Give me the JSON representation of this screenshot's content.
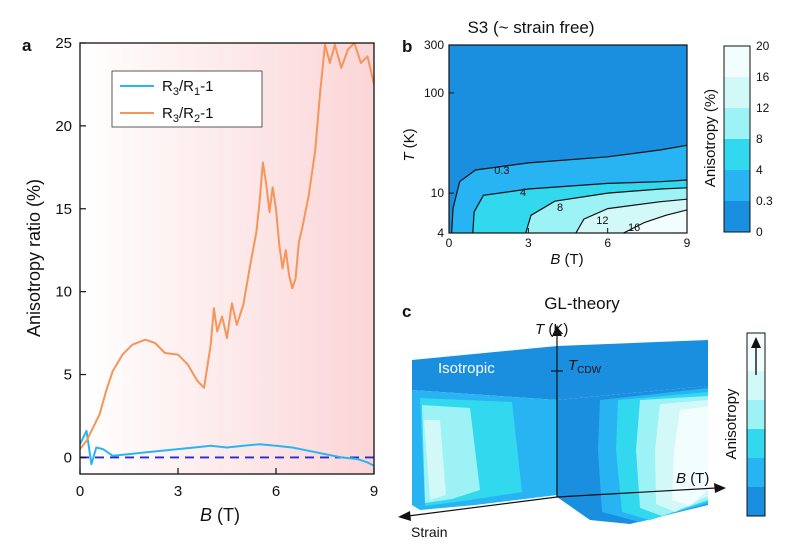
{
  "panel_a": {
    "letter": "a",
    "chart_data": {
      "type": "line",
      "xlabel_var": "B",
      "xlabel_unit": "(T)",
      "ylabel": "Anisotropy ratio (%)",
      "xlim": [
        0,
        9
      ],
      "ylim": [
        -1,
        25
      ],
      "xticks": [
        0,
        3,
        6,
        9
      ],
      "yticks": [
        0,
        5,
        10,
        15,
        20,
        25
      ],
      "legend_position": "top-left",
      "reference_line": {
        "y": 0,
        "style": "dashed",
        "color": "#2b2bd0"
      },
      "background_gradient": {
        "from": "#ffffff",
        "to": "#fbd5d7"
      },
      "series": [
        {
          "name": "R3/R1-1",
          "legend": {
            "a": "R",
            "a_sub": "3",
            "b": "/R",
            "b_sub": "1",
            "c": "-1"
          },
          "color": "#29b6f0",
          "x": [
            0,
            0.2,
            0.35,
            0.5,
            0.7,
            1,
            1.5,
            2,
            2.5,
            3,
            3.5,
            4,
            4.5,
            5,
            5.5,
            6,
            6.5,
            7,
            7.5,
            8,
            8.5,
            8.8,
            9
          ],
          "y": [
            0.8,
            1.6,
            -0.4,
            0.6,
            0.5,
            0.1,
            0.2,
            0.3,
            0.4,
            0.5,
            0.6,
            0.7,
            0.6,
            0.7,
            0.8,
            0.7,
            0.6,
            0.4,
            0.2,
            0,
            -0.1,
            -0.3,
            -0.5
          ]
        },
        {
          "name": "R3/R2-1",
          "legend": {
            "a": "R",
            "a_sub": "3",
            "b": "/R",
            "b_sub": "2",
            "c": "-1"
          },
          "color": "#f5955a",
          "x": [
            0,
            0.2,
            0.4,
            0.6,
            0.8,
            1,
            1.3,
            1.6,
            2,
            2.3,
            2.6,
            3,
            3.3,
            3.6,
            3.8,
            4,
            4.1,
            4.2,
            4.35,
            4.5,
            4.65,
            4.8,
            5,
            5.2,
            5.4,
            5.5,
            5.6,
            5.7,
            5.8,
            5.9,
            6,
            6.1,
            6.2,
            6.3,
            6.4,
            6.5,
            6.6,
            6.7,
            6.8,
            7,
            7.2,
            7.35,
            7.5,
            7.65,
            7.8,
            8,
            8.2,
            8.4,
            8.6,
            8.8,
            9
          ],
          "y": [
            0.5,
            1,
            1.8,
            2.6,
            4,
            5.2,
            6.2,
            6.8,
            7.1,
            6.9,
            6.3,
            6.2,
            5.6,
            4.6,
            4.2,
            6.8,
            9,
            7.6,
            8.5,
            7.2,
            9.3,
            8,
            9.2,
            11.5,
            13.6,
            15.5,
            17.8,
            16.5,
            14.8,
            16.3,
            15,
            12.8,
            11.4,
            12.5,
            11,
            10.2,
            10.8,
            13,
            13.8,
            15.8,
            18.5,
            22,
            24.9,
            23.8,
            24.9,
            23.5,
            24.6,
            25,
            23.8,
            24.2,
            22.5
          ]
        }
      ]
    }
  },
  "panel_b": {
    "letter": "b",
    "title": "S3 (~ strain free)",
    "chart_data": {
      "type": "heatmap",
      "xlabel_var": "B",
      "xlabel_unit": "(T)",
      "ylabel_var": "T",
      "ylabel_unit": "(K)",
      "xlim": [
        0,
        9
      ],
      "ylim": [
        4,
        300
      ],
      "yscale": "log",
      "xticks": [
        0,
        3,
        6,
        9
      ],
      "yticks": [
        4,
        10,
        100,
        300
      ],
      "contour_levels": [
        "0.3",
        "4",
        "8",
        "12",
        "16"
      ],
      "level_colors": [
        "#1a8fe0",
        "#28b4f2",
        "#31d8ee",
        "#9cf2f4",
        "#d2f8f8",
        "#f2fdfd"
      ],
      "contours": [
        {
          "label": "0.3",
          "label_at": [
            2.0,
            17
          ],
          "points": [
            [
              0.1,
              4
            ],
            [
              0.15,
              7
            ],
            [
              0.4,
              13
            ],
            [
              1,
              17
            ],
            [
              3,
              20
            ],
            [
              6,
              23
            ],
            [
              8,
              27
            ],
            [
              9,
              30
            ]
          ]
        },
        {
          "label": "4",
          "label_at": [
            2.8,
            10.2
          ],
          "points": [
            [
              0.9,
              4
            ],
            [
              0.95,
              6.5
            ],
            [
              1.3,
              9.5
            ],
            [
              3,
              11
            ],
            [
              6,
              12.5
            ],
            [
              8,
              13
            ],
            [
              9,
              13.5
            ]
          ]
        },
        {
          "label": "8",
          "label_at": [
            4.2,
            7.3
          ],
          "points": [
            [
              2.9,
              4
            ],
            [
              3.1,
              6
            ],
            [
              4,
              8.3
            ],
            [
              6,
              10
            ],
            [
              8,
              11
            ],
            [
              9,
              11.3
            ]
          ]
        },
        {
          "label": "12",
          "label_at": [
            5.8,
            5.4
          ],
          "points": [
            [
              4.8,
              4
            ],
            [
              5.1,
              5.5
            ],
            [
              6,
              7
            ],
            [
              8,
              8.2
            ],
            [
              9,
              8.7
            ]
          ]
        },
        {
          "label": "16",
          "label_at": [
            7.0,
            4.6
          ],
          "points": [
            [
              6.6,
              4
            ],
            [
              7.4,
              5.1
            ],
            [
              8.2,
              6
            ],
            [
              9,
              6.8
            ]
          ]
        }
      ]
    },
    "colorbar": {
      "label": "Anisotropy (%)",
      "ticks": [
        "0",
        "0.3",
        "4",
        "8",
        "12",
        "16",
        "20"
      ],
      "colors": [
        "#1a8fe0",
        "#28b4f2",
        "#31d8ee",
        "#9cf2f4",
        "#d2f8f8",
        "#f2fdfd"
      ]
    }
  },
  "panel_c": {
    "letter": "c",
    "title": "GL-theory",
    "t_axis_var": "T",
    "t_axis_unit": "(K)",
    "b_axis_var": "B",
    "b_axis_unit": "(T)",
    "strain_label": "Strain",
    "isotropic_label": "Isotropic",
    "tcdw_main": "T",
    "tcdw_sub": "CDW",
    "colorbar_label": "Anisotropy",
    "colors": {
      "dark": "#1a8fe0",
      "mid": "#28b4f2",
      "cyan": "#31d8ee",
      "light": "#9cf2f4",
      "pale": "#d2f8f8",
      "white": "#f2fdfd"
    }
  }
}
